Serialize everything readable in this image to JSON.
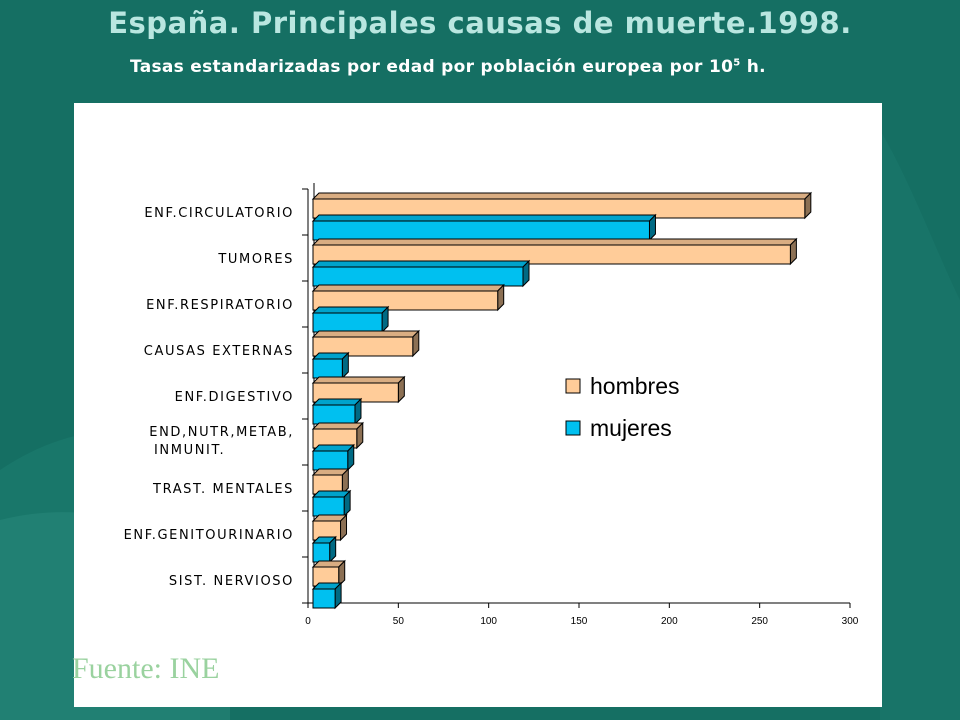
{
  "slide": {
    "title": "España. Principales causas de muerte.1998.",
    "subtitle_main": "Tasas estandarizadas por edad por población europea por 10",
    "subtitle_sup": "5",
    "subtitle_end": " h.",
    "source": "Fuente: INE"
  },
  "colors": {
    "background": "#156f63",
    "hombres": "#ffcc99",
    "mujeres": "#00c0f0"
  },
  "chart_data": {
    "type": "bar",
    "orientation": "horizontal",
    "categories": [
      "ENF.CIRCULATORIO",
      "TUMORES",
      "ENF.RESPIRATORIO",
      "CAUSAS EXTERNAS",
      "ENF.DIGESTIVO",
      "END,NUTR,METAB,\nINMUNIT.",
      "TRAST. MENTALES",
      "ENF.GENITOURINARIO",
      "SIST. NERVIOSO"
    ],
    "series": [
      {
        "name": "hombres",
        "values": [
          275,
          267,
          105,
          58,
          50,
          27,
          19,
          18,
          17
        ]
      },
      {
        "name": "mujeres",
        "values": [
          189,
          119,
          41,
          19,
          26,
          22,
          20,
          12,
          15
        ]
      }
    ],
    "xlim": [
      0,
      300
    ],
    "xticks": [
      0,
      50,
      100,
      150,
      200,
      250,
      300
    ],
    "legend_position": "right-middle",
    "grid": false
  }
}
